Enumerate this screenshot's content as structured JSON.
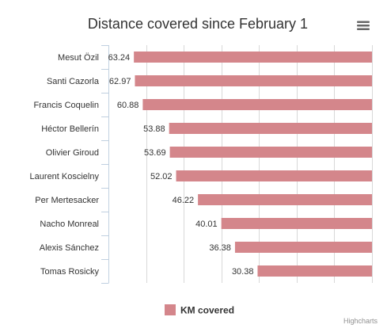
{
  "chart_data": {
    "type": "bar",
    "orientation": "horizontal",
    "title": "Distance covered since February 1",
    "categories": [
      "Mesut Özil",
      "Santi Cazorla",
      "Francis Coquelin",
      "Héctor Bellerín",
      "Olivier Giroud",
      "Laurent Koscielny",
      "Per Mertesacker",
      "Nacho Monreal",
      "Alexis Sánchez",
      "Tomas Rosicky"
    ],
    "series": [
      {
        "name": "KM covered",
        "color": "#d4868b",
        "values": [
          63.24,
          62.97,
          60.88,
          53.88,
          53.69,
          52.02,
          46.22,
          40.01,
          36.38,
          30.38
        ]
      }
    ],
    "value_labels": [
      "63.24",
      "62.97",
      "60.88",
      "53.88",
      "53.69",
      "52.02",
      "46.22",
      "40.01",
      "36.38",
      "30.38"
    ],
    "xlim": [
      0,
      70
    ],
    "reversed_value_axis": true,
    "grid": true,
    "legend_position": "bottom-center"
  },
  "menu_icon": "hamburger-icon",
  "credits": "Highcharts"
}
